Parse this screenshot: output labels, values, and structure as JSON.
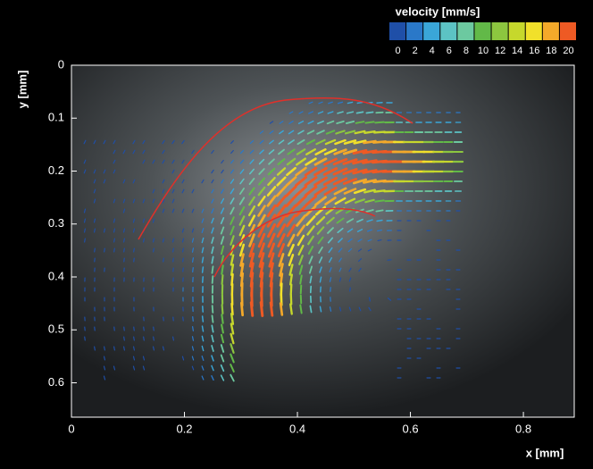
{
  "chart_data": {
    "type": "quiver",
    "xlabel": "x [mm]",
    "ylabel": "y [mm]",
    "xlim": [
      0,
      0.89
    ],
    "ylim": [
      0,
      0.665
    ],
    "y_inverted": true,
    "xticks": [
      0,
      0.2,
      0.4,
      0.6,
      0.8
    ],
    "yticks": [
      0,
      0.1,
      0.2,
      0.3,
      0.4,
      0.5,
      0.6
    ],
    "colorbar": {
      "title": "velocity [mm/s]",
      "ticks": [
        0,
        2,
        4,
        6,
        8,
        10,
        12,
        14,
        16,
        18,
        20
      ],
      "colors": [
        "#1f4fa8",
        "#2a78c8",
        "#3aa6d8",
        "#5cc3c4",
        "#6cc9a0",
        "#62b948",
        "#8cc63f",
        "#c6d82c",
        "#f1e02a",
        "#f4a92a",
        "#ee5a24"
      ]
    }
  }
}
